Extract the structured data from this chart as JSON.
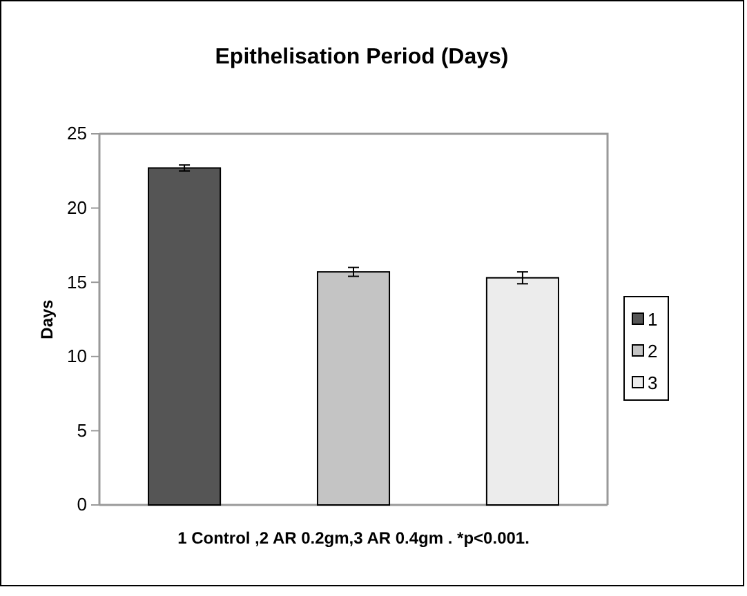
{
  "chart_data": {
    "type": "bar",
    "title": "Epithelisation Period (Days)",
    "xlabel": "1 Control ,2 AR 0.2gm,3 AR 0.4gm . *p<0.001.",
    "ylabel": "Days",
    "categories": [
      null
    ],
    "series": [
      {
        "name": "1",
        "color": "#555555",
        "values": [
          22.7
        ],
        "errors": [
          0.2
        ]
      },
      {
        "name": "2",
        "color": "#c4c4c4",
        "values": [
          15.7
        ],
        "errors": [
          0.3
        ]
      },
      {
        "name": "3",
        "color": "#ececec",
        "values": [
          15.3
        ],
        "errors": [
          0.4
        ]
      }
    ],
    "ylim": [
      0,
      25
    ],
    "yticks": [
      0,
      5,
      10,
      15,
      20,
      25
    ],
    "grid": false,
    "legend": "right"
  }
}
